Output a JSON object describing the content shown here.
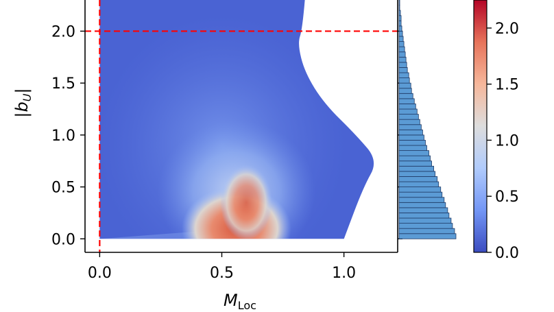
{
  "chart_data": [
    {
      "type": "heatmap",
      "title": "",
      "xlabel": "M",
      "xlabel_sub": "Loc",
      "ylabel": "|b",
      "ylabel_sub": "U",
      "ylabel_suffix": "|",
      "xlim": [
        -0.06,
        1.22
      ],
      "ylim": [
        -0.13,
        2.3
      ],
      "x_ticks": [
        0.0,
        0.5,
        1.0
      ],
      "x_tick_labels": [
        "0.0",
        "0.5",
        "1.0"
      ],
      "y_ticks": [
        0.0,
        0.5,
        1.0,
        1.5,
        2.0
      ],
      "y_tick_labels": [
        "0.0",
        "0.5",
        "1.0",
        "1.5",
        "2.0"
      ],
      "colormap": "coolwarm",
      "colormap_colors": [
        "#3b4cc0",
        "#7396f5",
        "#b0cbfc",
        "#dddddd",
        "#f6b79b",
        "#e7745b",
        "#b40426"
      ],
      "grid": false,
      "density_region": {
        "left_boundary": [
          [
            0.0,
            0.0
          ],
          [
            0.0,
            2.3
          ]
        ],
        "right_boundary": [
          [
            1.0,
            0.0
          ],
          [
            1.08,
            0.5
          ],
          [
            1.14,
            0.75
          ],
          [
            1.05,
            1.0
          ],
          [
            0.92,
            1.3
          ],
          [
            0.84,
            1.6
          ],
          [
            0.81,
            1.88
          ],
          [
            0.83,
            2.02
          ],
          [
            0.84,
            2.3
          ]
        ],
        "peak": {
          "x": 0.56,
          "y": 0.15,
          "value": 2.25
        },
        "background_color": "#4a63d3"
      },
      "reference_lines": [
        {
          "orientation": "vertical",
          "value": 0.0,
          "color": "#ff0000",
          "style": "dashed"
        },
        {
          "orientation": "horizontal",
          "value": 2.0,
          "color": "#ff0000",
          "style": "dashed"
        }
      ]
    },
    {
      "type": "bar",
      "orientation": "horizontal",
      "description_role": "marginal histogram of |b_U|",
      "bin_width": 0.05,
      "bin_starts": [
        0.0,
        0.05,
        0.1,
        0.15,
        0.2,
        0.25,
        0.3,
        0.35,
        0.4,
        0.45,
        0.5,
        0.55,
        0.6,
        0.65,
        0.7,
        0.75,
        0.8,
        0.85,
        0.9,
        0.95,
        1.0,
        1.05,
        1.1,
        1.15,
        1.2,
        1.25,
        1.3,
        1.35,
        1.4,
        1.45,
        1.5,
        1.55,
        1.6,
        1.65,
        1.7,
        1.75,
        1.8,
        1.85,
        1.9,
        1.95,
        2.0,
        2.05,
        2.1,
        2.15,
        2.2,
        2.25
      ],
      "values": [
        82,
        80,
        77,
        75,
        72,
        70,
        67,
        65,
        62,
        60,
        57,
        55,
        52,
        50,
        47,
        45,
        43,
        40,
        38,
        36,
        34,
        32,
        30,
        28,
        26,
        24,
        22,
        20,
        18,
        17,
        15,
        14,
        12,
        11,
        10,
        9,
        8,
        7,
        6,
        5,
        4,
        3,
        3,
        2,
        1,
        1
      ],
      "bar_color": "#5b9bd5",
      "edge_color": "#1f3a66"
    },
    {
      "type": "colorbar",
      "range": [
        0.0,
        2.25
      ],
      "ticks": [
        0.0,
        0.5,
        1.0,
        1.5,
        2.0
      ],
      "tick_labels": [
        "0.0",
        "0.5",
        "1.0",
        "1.5",
        "2.0"
      ],
      "colors": [
        "#3b4cc0",
        "#7396f5",
        "#b0cbfc",
        "#dddddd",
        "#f6b79b",
        "#e7745b",
        "#b40426"
      ]
    }
  ]
}
